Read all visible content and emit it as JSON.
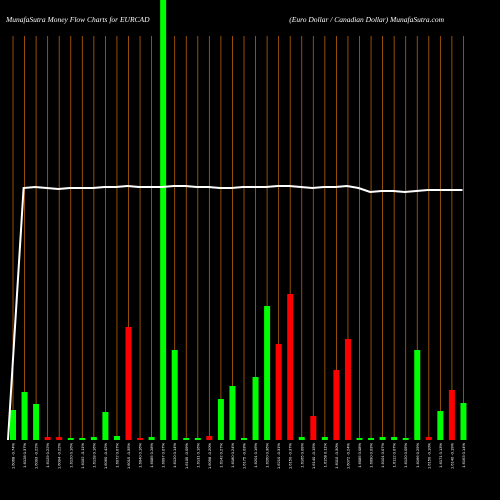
{
  "chart_data": {
    "type": "bar",
    "title": "MunafaSutra  Money Flow  Charts for EURCAD",
    "subtitle": "(Euro  Dollar / Canadian  Dollar) MunafaSutra.com",
    "categories": [
      "1.6068 -0.74%",
      "1.6128 0.37%",
      "1.6093 -0.22%",
      "1.6129 0.22%",
      "1.6094 -0.22%",
      "1.6120 0.16%",
      "1.6102 -0.11%",
      "1.6128 0.16%",
      "1.6060 -0.42%",
      "1.6072 0.07%",
      "1.6015 -0.35%",
      "1.6040 0.16%",
      "1.6085 0.28%",
      "1.6097 0.07%",
      "1.6120 0.14%",
      "1.6105 -0.09%",
      "1.6131 0.16%",
      "1.6098 -0.20%",
      "1.6142 0.27%",
      "1.6180 0.24%",
      "1.6175 -0.03%",
      "1.6201 0.16%",
      "1.6260 0.36%",
      "1.6210 -0.31%",
      "1.6150 -0.37%",
      "1.6165 0.09%",
      "1.6140 -0.15%",
      "1.6158 0.11%",
      "1.6110 -0.30%",
      "1.6072 -0.24%",
      "1.6085 0.08%",
      "1.6090 0.03%",
      "1.6101 0.07%",
      "1.6112 0.07%",
      "1.6120 0.05%",
      "1.6166 0.29%",
      "1.6150 -0.10%",
      "1.6171 0.13%",
      "1.6140 -0.19%",
      "1.6163 0.14%"
    ],
    "series": [
      {
        "color": "#ff0000",
        "up_color": "#00ff00",
        "direction": [
          "up",
          "up",
          "up",
          "down",
          "down",
          "up",
          "up",
          "up",
          "up",
          "up",
          "down",
          "down",
          "up",
          "up",
          "up",
          "up",
          "up",
          "down",
          "up",
          "up",
          "up",
          "up",
          "up",
          "down",
          "down",
          "up",
          "down",
          "up",
          "down",
          "down",
          "up",
          "up",
          "up",
          "up",
          "up",
          "up",
          "down",
          "up",
          "down",
          "up"
        ],
        "values": [
          30,
          48,
          36,
          3,
          3,
          2,
          2,
          3,
          28,
          4,
          113,
          2,
          3,
          440,
          90,
          2,
          2,
          4,
          41,
          54,
          2,
          63,
          134,
          96,
          146,
          3,
          24,
          3,
          70,
          101,
          2,
          2,
          3,
          3,
          2,
          90,
          3,
          29,
          50,
          37
        ]
      },
      {
        "type": "line",
        "color": "#ffffff",
        "axis": "y2",
        "values": [
          0,
          252,
          253,
          252,
          251,
          252,
          252,
          252,
          253,
          253,
          254,
          253,
          253,
          253,
          254,
          254,
          253,
          253,
          252,
          252,
          253,
          253,
          253,
          254,
          254,
          253,
          252,
          253,
          253,
          254,
          252,
          248,
          249,
          249,
          248,
          249,
          250,
          250,
          250,
          250
        ]
      }
    ],
    "ylim": [
      0,
      440
    ],
    "y2lim": [
      0,
      440
    ],
    "grid": true,
    "grid_color": "#b8620a",
    "background": "#000000"
  }
}
